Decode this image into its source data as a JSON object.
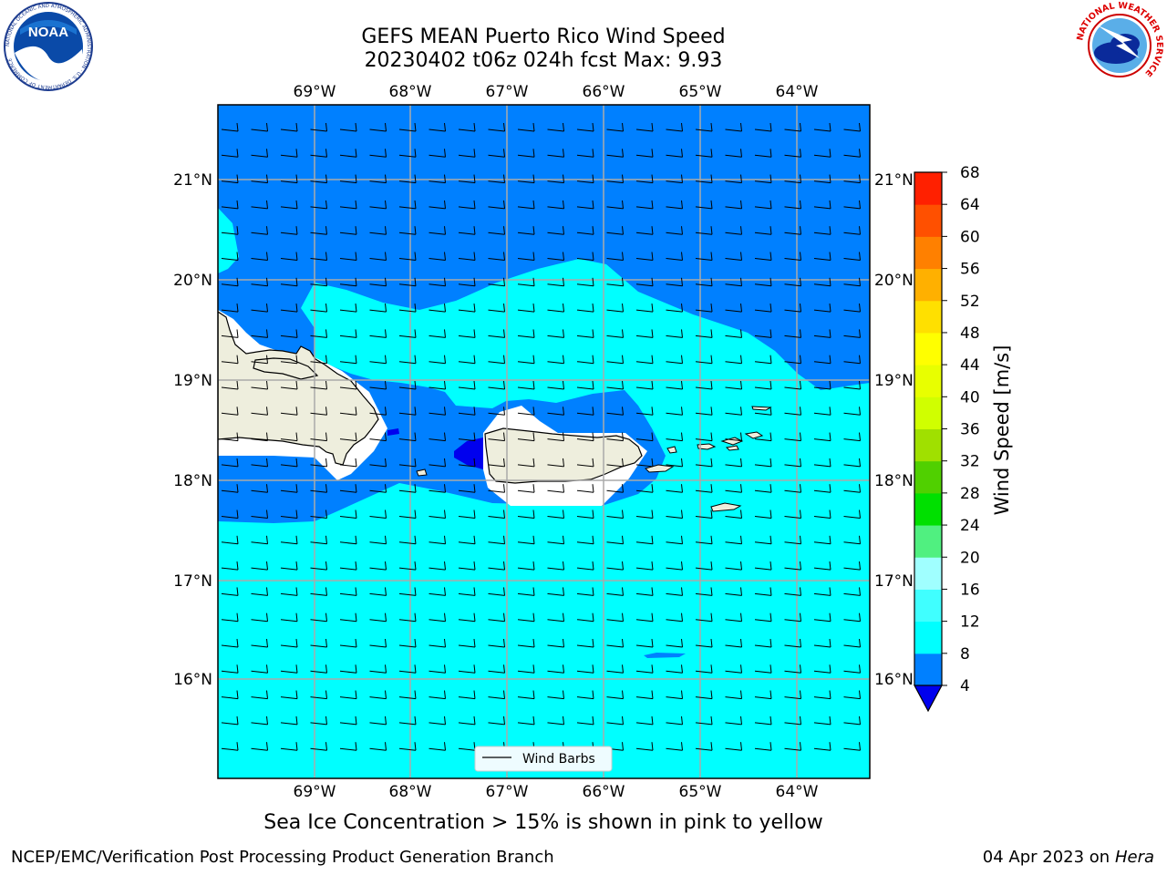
{
  "header": {
    "title_line1": "GEFS MEAN Puerto Rico Wind Speed",
    "title_line2": "20230402 t06z 024h fcst   Max: 9.93"
  },
  "logos": {
    "noaa_text": "NOAA",
    "noaa_ring_text": "NATIONAL OCEANIC AND ATMOSPHERIC ADMINISTRATION · U.S. DEPARTMENT OF COMMERCE",
    "nws_ring_text": "NATIONAL WEATHER SERVICE"
  },
  "map": {
    "lon_labels": [
      "69°W",
      "68°W",
      "67°W",
      "66°W",
      "65°W",
      "64°W"
    ],
    "lat_labels": [
      "21°N",
      "20°N",
      "19°N",
      "18°N",
      "17°N",
      "16°N"
    ],
    "legend_label": "Wind Barbs",
    "colors": {
      "ocean_dark": "#0080ff",
      "ocean_light": "#00ffff",
      "land": "#eeeedd",
      "low_speed": "#0000ee"
    }
  },
  "colorbar": {
    "label": "Wind Speed [m/s]",
    "ticks": [
      "4",
      "8",
      "12",
      "16",
      "20",
      "24",
      "28",
      "32",
      "36",
      "40",
      "44",
      "48",
      "52",
      "56",
      "60",
      "64",
      "68"
    ],
    "colors": [
      "#0080ff",
      "#00ffff",
      "#40ffff",
      "#a0ffff",
      "#50f080",
      "#00e000",
      "#50d000",
      "#a0e000",
      "#d0ff00",
      "#e8ff00",
      "#ffff00",
      "#ffe000",
      "#ffb000",
      "#ff8000",
      "#ff5000",
      "#ff2000",
      "#ff0000"
    ],
    "extend_color": "#0000ee"
  },
  "caption": "Sea Ice Concentration > 15% is shown in pink to yellow",
  "footer": {
    "left": "NCEP/EMC/Verification Post Processing Product Generation Branch",
    "right_date": "04 Apr 2023 on ",
    "right_host": "Hera"
  }
}
